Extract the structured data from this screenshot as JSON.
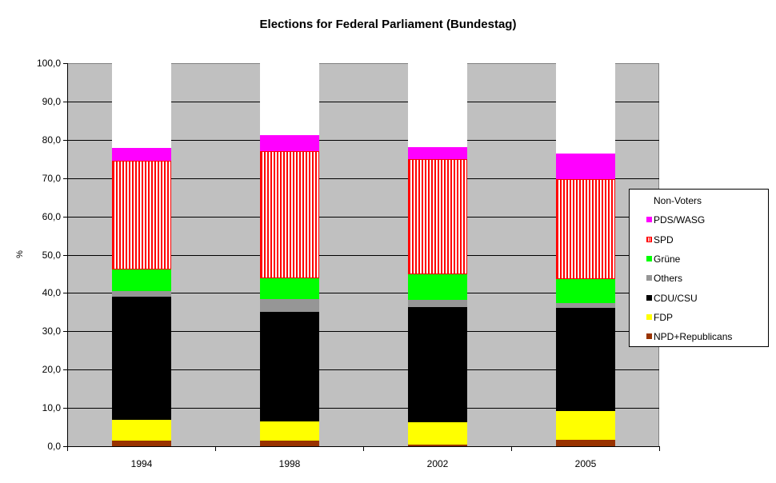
{
  "chart_data": {
    "type": "bar",
    "stacked": true,
    "title": "Elections for Federal Parliament (Bundestag)",
    "xlabel": "",
    "ylabel": "%",
    "ylim": [
      0,
      100
    ],
    "yticks": [
      "0,0",
      "10,0",
      "20,0",
      "30,0",
      "40,0",
      "50,0",
      "60,0",
      "70,0",
      "80,0",
      "90,0",
      "100,0"
    ],
    "categories": [
      "1994",
      "1998",
      "2002",
      "2005"
    ],
    "series": [
      {
        "name": "NPD+Republicans",
        "color": "#993300",
        "values": [
          1.5,
          1.5,
          0.5,
          1.7
        ]
      },
      {
        "name": "FDP",
        "color": "#ffff00",
        "values": [
          5.4,
          5.0,
          5.8,
          7.5
        ]
      },
      {
        "name": "CDU/CSU",
        "color": "#000000",
        "values": [
          32.1,
          28.6,
          30.0,
          26.9
        ]
      },
      {
        "name": "Others",
        "color": "#969696",
        "values": [
          1.5,
          3.4,
          1.9,
          1.3
        ]
      },
      {
        "name": "Grüne",
        "color": "#00ff00",
        "values": [
          5.6,
          5.4,
          6.7,
          6.2
        ]
      },
      {
        "name": "SPD",
        "color": "#ff0000",
        "pattern": "vertical-stripes",
        "values": [
          28.4,
          33.1,
          30.0,
          26.1
        ]
      },
      {
        "name": "PDS/WASG",
        "color": "#ff00ff",
        "values": [
          3.4,
          4.2,
          3.2,
          6.7
        ]
      },
      {
        "name": "Non-Voters",
        "color": "#ffffff",
        "values": [
          22.1,
          18.8,
          21.9,
          23.6
        ]
      }
    ],
    "legend_position": "right",
    "legend_order": [
      "Non-Voters",
      "PDS/WASG",
      "SPD",
      "Grüne",
      "Others",
      "CDU/CSU",
      "FDP",
      "NPD+Republicans"
    ],
    "grid": true,
    "plot_background": "#c0c0c0"
  }
}
